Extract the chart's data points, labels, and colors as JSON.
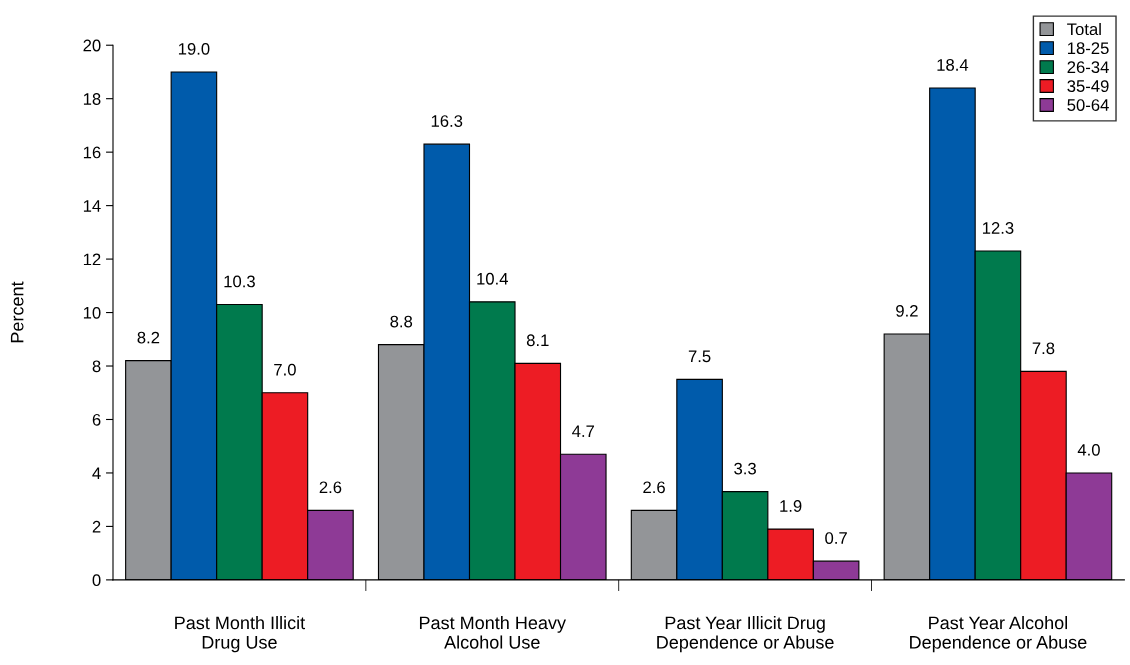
{
  "chart_data": {
    "type": "bar",
    "ylabel": "Percent",
    "categories": [
      "Past Month Illicit\nDrug Use",
      "Past Month Heavy\nAlcohol Use",
      "Past Year Illicit Drug\nDependence or Abuse",
      "Past Year Alcohol\nDependence or Abuse"
    ],
    "series": [
      {
        "name": "Total",
        "color": "#939598",
        "values": [
          8.2,
          8.8,
          2.6,
          9.2
        ],
        "value_labels": [
          "8.2",
          "8.8",
          "2.6",
          "9.2"
        ]
      },
      {
        "name": "18-25",
        "color": "#005bab",
        "values": [
          19.0,
          16.3,
          7.5,
          18.4
        ],
        "value_labels": [
          "19.0",
          "16.3",
          "7.5",
          "18.4"
        ]
      },
      {
        "name": "26-34",
        "color": "#007a4d",
        "values": [
          10.3,
          10.4,
          3.3,
          12.3
        ],
        "value_labels": [
          "10.3",
          "10.4",
          "3.3",
          "12.3"
        ]
      },
      {
        "name": "35-49",
        "color": "#ed1c24",
        "values": [
          7.0,
          8.1,
          1.9,
          7.8
        ],
        "value_labels": [
          "7.0",
          "8.1",
          "1.9",
          "7.8"
        ]
      },
      {
        "name": "50-64",
        "color": "#8e3a96",
        "values": [
          2.6,
          4.7,
          0.7,
          4.0
        ],
        "value_labels": [
          "2.6",
          "4.7",
          "0.7",
          "4.0"
        ]
      }
    ],
    "ylim": [
      0,
      20
    ],
    "yticks": [
      0,
      2,
      4,
      6,
      8,
      10,
      12,
      14,
      16,
      18,
      20
    ],
    "grid": false,
    "legend": "top right"
  }
}
